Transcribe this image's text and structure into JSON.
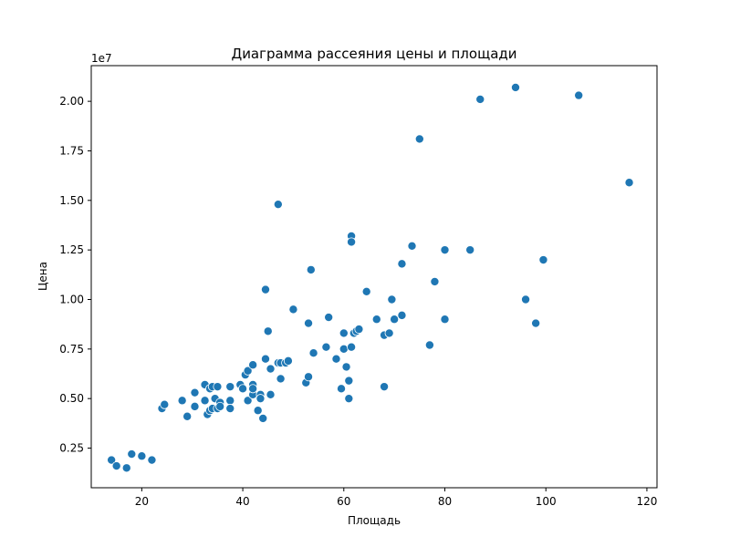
{
  "chart_data": {
    "type": "scatter",
    "title": "Диаграмма рассеяния цены и площади",
    "xlabel": "Площадь",
    "ylabel": "Цена",
    "y_offset_label": "1e7",
    "xlim": [
      10,
      122
    ],
    "ylim": [
      0.05,
      2.18
    ],
    "xticks": [
      20,
      40,
      60,
      80,
      100,
      120
    ],
    "yticks": [
      0.25,
      0.5,
      0.75,
      1.0,
      1.25,
      1.5,
      1.75,
      2.0
    ],
    "ytick_labels": [
      "0.25",
      "0.50",
      "0.75",
      "1.00",
      "1.25",
      "1.50",
      "1.75",
      "2.00"
    ],
    "y_scale_factor": 10000000,
    "grid": false,
    "marker_color": "#1f77b4",
    "points": [
      [
        14.0,
        0.19
      ],
      [
        15.0,
        0.16
      ],
      [
        17.0,
        0.15
      ],
      [
        18.0,
        0.22
      ],
      [
        20.0,
        0.21
      ],
      [
        22.0,
        0.19
      ],
      [
        24.0,
        0.45
      ],
      [
        24.5,
        0.47
      ],
      [
        28.0,
        0.49
      ],
      [
        29.0,
        0.41
      ],
      [
        30.5,
        0.46
      ],
      [
        30.5,
        0.53
      ],
      [
        32.5,
        0.49
      ],
      [
        32.5,
        0.57
      ],
      [
        33.0,
        0.42
      ],
      [
        33.5,
        0.44
      ],
      [
        33.5,
        0.55
      ],
      [
        34.0,
        0.45
      ],
      [
        34.0,
        0.56
      ],
      [
        34.5,
        0.5
      ],
      [
        35.0,
        0.56
      ],
      [
        35.0,
        0.45
      ],
      [
        35.5,
        0.48
      ],
      [
        35.5,
        0.46
      ],
      [
        37.5,
        0.56
      ],
      [
        37.5,
        0.49
      ],
      [
        37.5,
        0.45
      ],
      [
        39.5,
        0.57
      ],
      [
        40.0,
        0.55
      ],
      [
        40.5,
        0.62
      ],
      [
        41.0,
        0.49
      ],
      [
        41.0,
        0.64
      ],
      [
        42.0,
        0.67
      ],
      [
        42.0,
        0.52
      ],
      [
        42.0,
        0.57
      ],
      [
        42.0,
        0.55
      ],
      [
        43.0,
        0.44
      ],
      [
        43.5,
        0.52
      ],
      [
        43.5,
        0.5
      ],
      [
        44.0,
        0.4
      ],
      [
        44.5,
        1.05
      ],
      [
        44.5,
        0.7
      ],
      [
        45.0,
        0.84
      ],
      [
        45.5,
        0.65
      ],
      [
        45.5,
        0.52
      ],
      [
        47.0,
        1.48
      ],
      [
        47.0,
        0.68
      ],
      [
        47.5,
        0.68
      ],
      [
        47.5,
        0.6
      ],
      [
        48.5,
        0.68
      ],
      [
        49.0,
        0.69
      ],
      [
        50.0,
        0.95
      ],
      [
        52.5,
        0.58
      ],
      [
        53.0,
        0.61
      ],
      [
        53.0,
        0.88
      ],
      [
        53.5,
        1.15
      ],
      [
        54.0,
        0.73
      ],
      [
        56.5,
        0.76
      ],
      [
        57.0,
        0.91
      ],
      [
        58.5,
        0.7
      ],
      [
        59.5,
        0.55
      ],
      [
        60.0,
        0.83
      ],
      [
        60.0,
        0.75
      ],
      [
        60.5,
        0.66
      ],
      [
        61.0,
        0.59
      ],
      [
        61.0,
        0.5
      ],
      [
        61.5,
        1.32
      ],
      [
        61.5,
        1.29
      ],
      [
        61.5,
        0.76
      ],
      [
        62.0,
        0.83
      ],
      [
        62.5,
        0.84
      ],
      [
        63.0,
        0.85
      ],
      [
        64.5,
        1.04
      ],
      [
        66.5,
        0.9
      ],
      [
        68.0,
        0.56
      ],
      [
        68.0,
        0.82
      ],
      [
        69.0,
        0.83
      ],
      [
        69.5,
        1.0
      ],
      [
        70.0,
        0.9
      ],
      [
        71.5,
        1.18
      ],
      [
        71.5,
        0.92
      ],
      [
        73.5,
        1.27
      ],
      [
        75.0,
        1.81
      ],
      [
        77.0,
        0.77
      ],
      [
        78.0,
        1.09
      ],
      [
        80.0,
        1.25
      ],
      [
        80.0,
        0.9
      ],
      [
        85.0,
        1.25
      ],
      [
        87.0,
        2.01
      ],
      [
        94.0,
        2.07
      ],
      [
        96.0,
        1.0
      ],
      [
        98.0,
        0.88
      ],
      [
        99.5,
        1.2
      ],
      [
        106.5,
        2.03
      ],
      [
        116.5,
        1.59
      ]
    ]
  }
}
